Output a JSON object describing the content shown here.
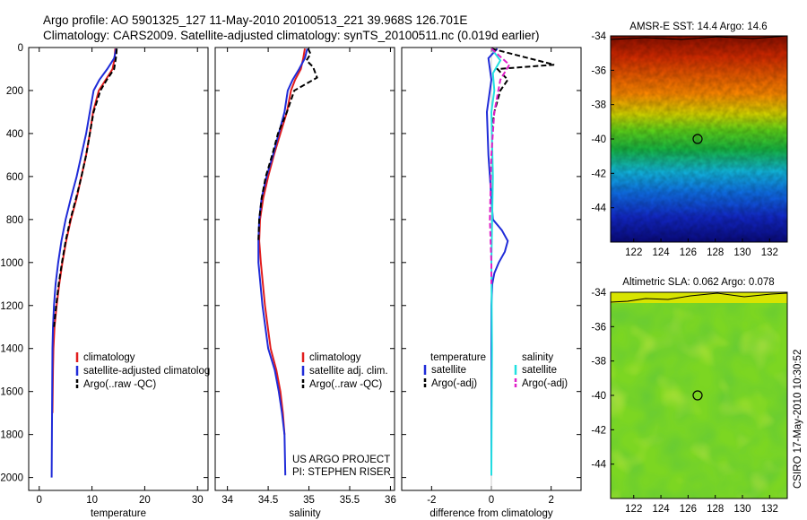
{
  "header": {
    "line1": "Argo profile: AO 5901325_127 11-May-2010 20100513_221 39.968S 126.701E",
    "line2": "Climatology: CARS2009. Satellite-adjusted climatology: synTS_20100511.nc (0.019d earlier)"
  },
  "colors": {
    "clim": "#e11d1d",
    "sat": "#1f2bd8",
    "argo": "#000000",
    "cyan": "#22e0e0",
    "magenta": "#e020c8"
  },
  "chart_data": [
    {
      "id": "temperature",
      "type": "line",
      "xlabel": "temperature",
      "xlim": [
        -2,
        32
      ],
      "ylim": [
        2060,
        0
      ],
      "xticks": [
        0,
        10,
        20,
        30
      ],
      "yticks": [
        0,
        200,
        400,
        600,
        800,
        1000,
        1200,
        1400,
        1600,
        1800,
        2000
      ],
      "series": [
        {
          "name": "climatology",
          "color": "clim",
          "style": "solid",
          "x": [
            14.4,
            14.3,
            13.9,
            12.6,
            11.3,
            10.2,
            9.6,
            8.9,
            8.0,
            7.1,
            6.0,
            5.1,
            4.4,
            3.8,
            3.3,
            2.9,
            2.7,
            2.6,
            2.55,
            2.5
          ],
          "y": [
            5,
            50,
            100,
            150,
            200,
            300,
            400,
            500,
            600,
            700,
            800,
            900,
            1000,
            1100,
            1200,
            1300,
            1400,
            1500,
            1600,
            1700
          ]
        },
        {
          "name": "satellite-adjusted climatology",
          "color": "sat",
          "style": "solid",
          "x": [
            14.6,
            14.2,
            12.9,
            11.4,
            10.3,
            9.6,
            8.9,
            8.0,
            7.1,
            6.0,
            5.0,
            4.2,
            3.6,
            3.1,
            2.8,
            2.6,
            2.5,
            2.45,
            2.4,
            2.35
          ],
          "y": [
            5,
            50,
            100,
            150,
            200,
            300,
            400,
            500,
            600,
            700,
            800,
            900,
            1000,
            1100,
            1200,
            1300,
            1400,
            1600,
            1800,
            2000
          ]
        },
        {
          "name": "Argo(..raw -QC)",
          "color": "argo",
          "style": "dashed",
          "x": [
            14.7,
            14.6,
            14.2,
            12.8,
            11.6,
            10.3,
            9.6,
            8.9,
            8.0,
            7.0,
            5.9,
            5.0,
            4.3,
            3.7,
            3.2,
            2.8
          ],
          "y": [
            5,
            40,
            100,
            150,
            200,
            300,
            400,
            500,
            600,
            700,
            800,
            900,
            1000,
            1100,
            1200,
            1300
          ]
        }
      ],
      "legend": {
        "position": "right",
        "entries": [
          "climatology",
          "satellite-adjusted climatolog",
          "Argo(..raw -QC)"
        ]
      }
    },
    {
      "id": "salinity",
      "type": "line",
      "xlabel": "salinity",
      "xlim": [
        33.85,
        36.05
      ],
      "ylim": [
        2060,
        0
      ],
      "xticks": [
        34,
        34.5,
        35,
        35.5,
        36
      ],
      "xticklabels": [
        "34",
        "34.5",
        "35",
        "35.5",
        "36"
      ],
      "yticks": [
        0,
        200,
        400,
        600,
        800,
        1000,
        1200,
        1400,
        1600,
        1800,
        2000
      ],
      "series": [
        {
          "name": "climatology",
          "color": "clim",
          "style": "solid",
          "x": [
            34.95,
            34.93,
            34.9,
            34.83,
            34.78,
            34.73,
            34.65,
            34.57,
            34.5,
            34.44,
            34.4,
            34.39,
            34.41,
            34.46,
            34.53,
            34.6,
            34.65,
            34.68,
            34.7
          ],
          "y": [
            5,
            50,
            100,
            150,
            200,
            300,
            400,
            500,
            600,
            700,
            800,
            900,
            1000,
            1200,
            1400,
            1500,
            1600,
            1700,
            1800
          ]
        },
        {
          "name": "satellite adj. clim.",
          "color": "sat",
          "style": "solid",
          "x": [
            34.98,
            34.95,
            34.88,
            34.8,
            34.74,
            34.7,
            34.63,
            34.56,
            34.48,
            34.42,
            34.39,
            34.38,
            34.38,
            34.43,
            34.5,
            34.58,
            34.63,
            34.67,
            34.7,
            34.71
          ],
          "y": [
            5,
            50,
            100,
            150,
            200,
            300,
            400,
            500,
            600,
            700,
            800,
            900,
            1000,
            1200,
            1400,
            1500,
            1600,
            1700,
            1800,
            1990
          ]
        },
        {
          "name": "Argo(..raw -QC)",
          "color": "argo",
          "style": "dashed",
          "x": [
            34.99,
            35.02,
            34.97,
            35.05,
            35.1,
            34.82,
            34.73,
            34.62,
            34.55,
            34.47,
            34.42,
            34.39,
            34.38
          ],
          "y": [
            5,
            30,
            60,
            90,
            140,
            200,
            300,
            400,
            500,
            600,
            700,
            800,
            900
          ]
        }
      ],
      "legend": {
        "position": "bottom-right",
        "entries": [
          "climatology",
          "satellite adj. clim.",
          "Argo(..raw -QC)"
        ]
      },
      "annotations": [
        "US ARGO PROJECT",
        "PI: STEPHEN RISER"
      ]
    },
    {
      "id": "difference",
      "type": "line",
      "xlabel": "difference from climatology",
      "xlim": [
        -3,
        3
      ],
      "ylim": [
        2060,
        0
      ],
      "xticks": [
        -2,
        0,
        2
      ],
      "yticks": [
        0,
        200,
        400,
        600,
        800,
        1000,
        1200,
        1400,
        1600,
        1800,
        2000
      ],
      "series": [
        {
          "name": "temperature satellite",
          "color": "sat",
          "style": "solid",
          "x": [
            0.2,
            -0.1,
            0.0,
            -0.15,
            -0.1,
            0.0,
            0.05,
            0.35,
            0.55,
            0.45,
            0.25,
            0.1,
            0.03,
            0.0,
            0.0,
            0.0
          ],
          "y": [
            5,
            50,
            150,
            300,
            500,
            700,
            800,
            850,
            900,
            950,
            1000,
            1050,
            1100,
            1200,
            1500,
            1990
          ]
        },
        {
          "name": "temperature Argo(-adj)",
          "color": "argo",
          "style": "dashed",
          "x": [
            0.0,
            2.1,
            0.2,
            0.55,
            0.3,
            0.1,
            0.0
          ],
          "y": [
            5,
            80,
            100,
            150,
            200,
            300,
            400
          ]
        },
        {
          "name": "salinity satellite",
          "color": "cyan",
          "style": "solid",
          "x": [
            0.0,
            0.3,
            0.05,
            0.1,
            0.0,
            0.05,
            0.0,
            0.02,
            0.0
          ],
          "y": [
            5,
            60,
            120,
            200,
            300,
            600,
            1000,
            1400,
            1990
          ]
        },
        {
          "name": "salinity Argo(-adj)",
          "color": "magenta",
          "style": "dashed",
          "x": [
            0.0,
            0.6,
            0.3,
            0.1,
            0.0,
            -0.05,
            0.0,
            0.0
          ],
          "y": [
            5,
            80,
            150,
            300,
            500,
            800,
            1000,
            1100
          ]
        }
      ],
      "legend": {
        "position": "bottom",
        "headers": [
          "temperature",
          "salinity"
        ],
        "entries": [
          "satellite",
          "Argo(-adj)",
          "satellite",
          "Argo(-adj)"
        ]
      }
    },
    {
      "id": "sst-map",
      "type": "heatmap",
      "title": "AMSR-E SST: 14.4  Argo: 14.6",
      "xlim": [
        120.3,
        133.3
      ],
      "ylim": [
        -46,
        -34
      ],
      "xticks": [
        122,
        124,
        126,
        128,
        130,
        132
      ],
      "yticks": [
        -34,
        -36,
        -38,
        -40,
        -42,
        -44
      ],
      "marker": {
        "lon": 126.7,
        "lat": -40.0
      }
    },
    {
      "id": "sla-map",
      "type": "heatmap",
      "title": "Altimetric SLA: 0.062  Argo: 0.078",
      "xlim": [
        120.3,
        133.3
      ],
      "ylim": [
        -46,
        -34
      ],
      "xticks": [
        122,
        124,
        126,
        128,
        130,
        132
      ],
      "yticks": [
        -34,
        -36,
        -38,
        -40,
        -42,
        -44
      ],
      "marker": {
        "lon": 126.7,
        "lat": -40.0
      }
    }
  ],
  "footer": {
    "side_label": "CSIRO 17-May-2010 10:30:52"
  }
}
